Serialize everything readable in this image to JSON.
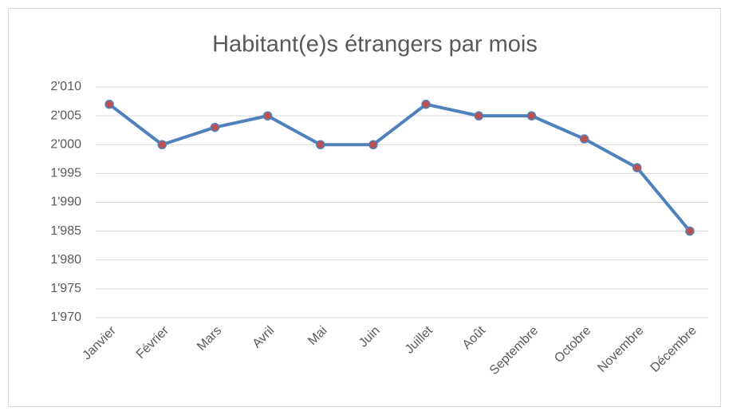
{
  "chart_data": {
    "type": "line",
    "title": "Habitant(e)s étrangers par mois",
    "categories": [
      "Janvier",
      "Février",
      "Mars",
      "Avril",
      "Mai",
      "Juin",
      "Juillet",
      "Août",
      "Septembre",
      "Octobre",
      "Novembre",
      "Décembre"
    ],
    "series": [
      {
        "color": "#4f81bd",
        "marker_color": "#c0504d",
        "values": [
          2007,
          2000,
          2003,
          2005,
          2000,
          2000,
          2007,
          2005,
          2005,
          2001,
          1996,
          1985
        ]
      }
    ],
    "ylim": [
      1970,
      2010
    ],
    "yticks": [
      {
        "value": 1970,
        "label": "1'970"
      },
      {
        "value": 1975,
        "label": "1'975"
      },
      {
        "value": 1980,
        "label": "1'980"
      },
      {
        "value": 1985,
        "label": "1'985"
      },
      {
        "value": 1990,
        "label": "1'990"
      },
      {
        "value": 1995,
        "label": "1'995"
      },
      {
        "value": 2000,
        "label": "2'000"
      },
      {
        "value": 2005,
        "label": "2'005"
      },
      {
        "value": 2010,
        "label": "2'010"
      }
    ],
    "grid": true
  }
}
